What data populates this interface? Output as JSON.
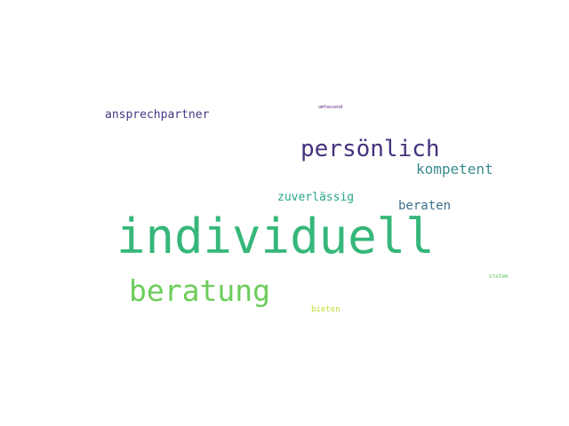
{
  "words": [
    {
      "text": "individuell",
      "color": "#35b779"
    },
    {
      "text": "beratung",
      "color": "#6ccd5a"
    },
    {
      "text": "persönlich",
      "color": "#46327e"
    },
    {
      "text": "kompetent",
      "color": "#3b8b8c"
    },
    {
      "text": "ansprechpartner",
      "color": "#443983"
    },
    {
      "text": "zuverlässig",
      "color": "#2aa58a"
    },
    {
      "text": "beraten",
      "color": "#3d708c"
    },
    {
      "text": "bieten",
      "color": "#b9de2a"
    },
    {
      "text": "stetem",
      "color": "#5ec962"
    },
    {
      "text": "umfassend",
      "color": "#5b1a80"
    }
  ]
}
